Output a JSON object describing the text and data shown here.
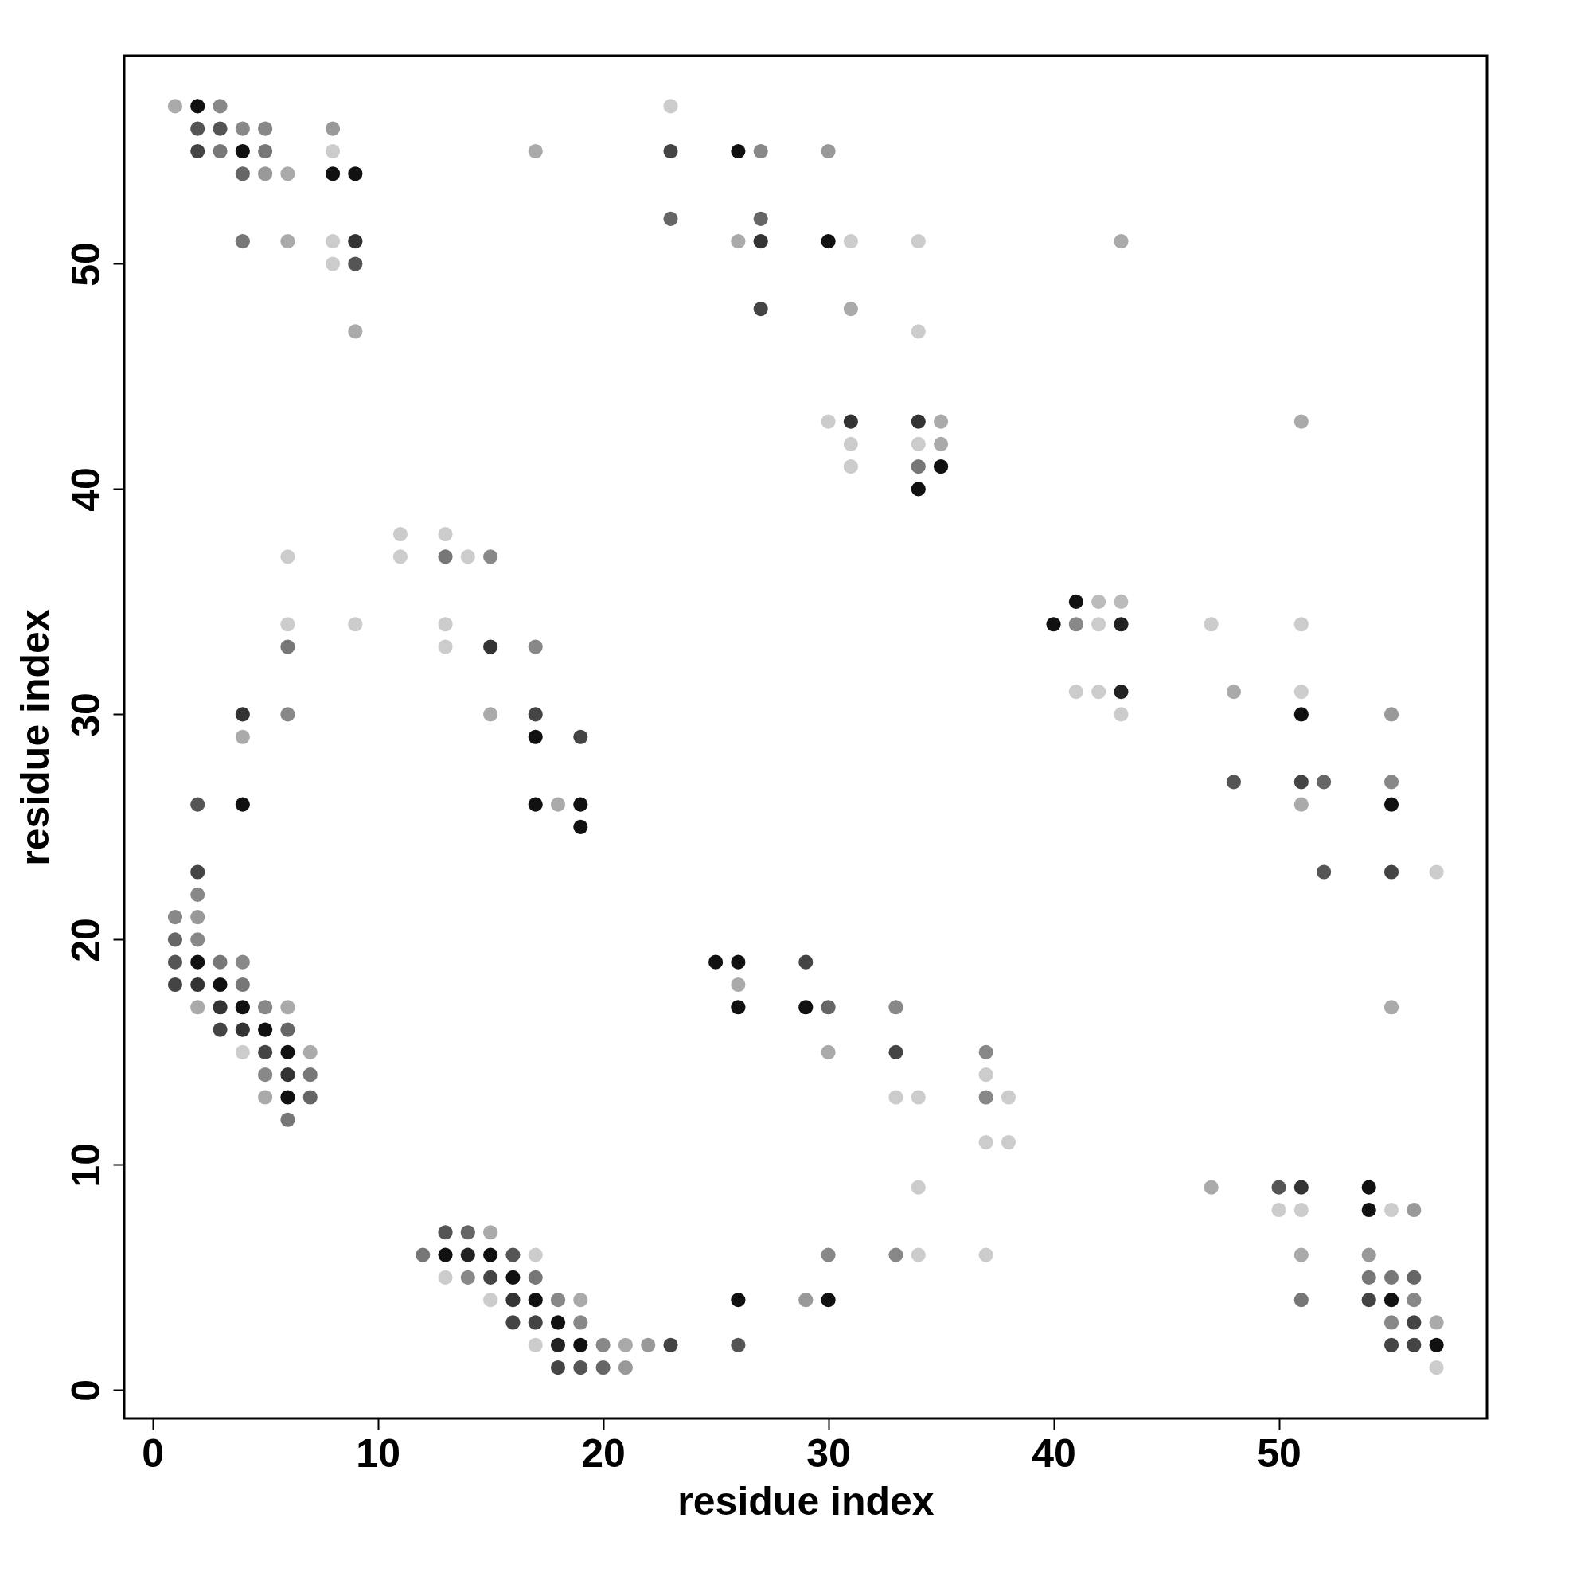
{
  "chart_data": {
    "type": "scatter",
    "xlabel": "residue index",
    "ylabel": "residue index",
    "xlim": [
      -1.26,
      59.24
    ],
    "ylim": [
      -1.26,
      59.24
    ],
    "xticks": [
      0,
      10,
      20,
      30,
      40,
      50
    ],
    "yticks": [
      0,
      10,
      20,
      30,
      40,
      50
    ],
    "marker": "circle",
    "series": [
      {
        "x": [
          1,
          2,
          3,
          2,
          3,
          4,
          5,
          8,
          2,
          3,
          4,
          5,
          8,
          17,
          4,
          5,
          6,
          8,
          9,
          4,
          6,
          8,
          9,
          8,
          9,
          9,
          23,
          23,
          26,
          27,
          30,
          23,
          27,
          26,
          27,
          30,
          31,
          34,
          43,
          27,
          31,
          34,
          30,
          31,
          34,
          35,
          31,
          34,
          35,
          31,
          34,
          35,
          34,
          11,
          13,
          6,
          11,
          13,
          14,
          15,
          6,
          9,
          13,
          6,
          13,
          15,
          17,
          4,
          6,
          15,
          17,
          4,
          17,
          19,
          2,
          4,
          17,
          18,
          19,
          19,
          41,
          42,
          43,
          40,
          41,
          42,
          43,
          47,
          51,
          41,
          42,
          43,
          48,
          51,
          43,
          51,
          55,
          48,
          51,
          52,
          55,
          51,
          55,
          52,
          55,
          57,
          55,
          51,
          2,
          2,
          1,
          2,
          1,
          2,
          1,
          2,
          3,
          4,
          1,
          2,
          3,
          4,
          2,
          3,
          4,
          5,
          6,
          3,
          4,
          5,
          6,
          4,
          5,
          6,
          7,
          5,
          6,
          7,
          5,
          6,
          7,
          6,
          25,
          26,
          29,
          26,
          26,
          29,
          30,
          33,
          30,
          33,
          37,
          37,
          33,
          34,
          37,
          38,
          37,
          38,
          34,
          47,
          50,
          51,
          54,
          50,
          51,
          54,
          55,
          56,
          13,
          14,
          15,
          12,
          13,
          14,
          15,
          16,
          17,
          30,
          33,
          34,
          37,
          51,
          54,
          13,
          14,
          15,
          16,
          17,
          54,
          55,
          56,
          15,
          16,
          17,
          18,
          19,
          26,
          29,
          30,
          51,
          54,
          55,
          56,
          16,
          17,
          18,
          19,
          55,
          56,
          57,
          17,
          18,
          19,
          20,
          21,
          22,
          23,
          26,
          55,
          56,
          57,
          18,
          19,
          20,
          21,
          57
        ],
        "values": [
          57,
          57,
          57,
          56,
          56,
          56,
          56,
          56,
          55,
          55,
          55,
          55,
          55,
          55,
          54,
          54,
          54,
          54,
          54,
          51,
          51,
          51,
          51,
          50,
          50,
          47,
          57,
          55,
          55,
          55,
          55,
          52,
          52,
          51,
          51,
          51,
          51,
          51,
          51,
          48,
          48,
          47,
          43,
          43,
          43,
          43,
          42,
          42,
          42,
          41,
          41,
          41,
          40,
          38,
          38,
          37,
          37,
          37,
          37,
          37,
          34,
          34,
          34,
          33,
          33,
          33,
          33,
          30,
          30,
          30,
          30,
          29,
          29,
          29,
          26,
          26,
          26,
          26,
          26,
          25,
          35,
          35,
          35,
          34,
          34,
          34,
          34,
          34,
          34,
          31,
          31,
          31,
          31,
          31,
          30,
          30,
          30,
          27,
          27,
          27,
          27,
          26,
          26,
          23,
          23,
          23,
          17,
          43,
          23,
          22,
          21,
          21,
          20,
          20,
          19,
          19,
          19,
          19,
          18,
          18,
          18,
          18,
          17,
          17,
          17,
          17,
          17,
          16,
          16,
          16,
          16,
          15,
          15,
          15,
          15,
          14,
          14,
          14,
          13,
          13,
          13,
          12,
          19,
          19,
          19,
          18,
          17,
          17,
          17,
          17,
          15,
          15,
          15,
          14,
          13,
          13,
          13,
          13,
          11,
          11,
          9,
          9,
          9,
          9,
          9,
          8,
          8,
          8,
          8,
          8,
          7,
          7,
          7,
          6,
          6,
          6,
          6,
          6,
          6,
          6,
          6,
          6,
          6,
          6,
          6,
          5,
          5,
          5,
          5,
          5,
          5,
          5,
          5,
          4,
          4,
          4,
          4,
          4,
          4,
          4,
          4,
          4,
          4,
          4,
          4,
          3,
          3,
          3,
          3,
          3,
          3,
          3,
          2,
          2,
          2,
          2,
          2,
          2,
          2,
          2,
          2,
          2,
          2,
          1,
          1,
          1,
          1,
          1
        ],
        "colors": [
          "#aaaaaa",
          "#111111",
          "#888888",
          "#555555",
          "#555555",
          "#888888",
          "#888888",
          "#999999",
          "#444444",
          "#777777",
          "#111111",
          "#777777",
          "#cccccc",
          "#aaaaaa",
          "#666666",
          "#999999",
          "#aaaaaa",
          "#111111",
          "#111111",
          "#777777",
          "#aaaaaa",
          "#cccccc",
          "#333333",
          "#cccccc",
          "#555555",
          "#aaaaaa",
          "#cccccc",
          "#444444",
          "#111111",
          "#888888",
          "#999999",
          "#666666",
          "#666666",
          "#aaaaaa",
          "#333333",
          "#111111",
          "#cccccc",
          "#cccccc",
          "#aaaaaa",
          "#444444",
          "#aaaaaa",
          "#cccccc",
          "#cccccc",
          "#333333",
          "#333333",
          "#aaaaaa",
          "#cccccc",
          "#cccccc",
          "#aaaaaa",
          "#cccccc",
          "#777777",
          "#111111",
          "#111111",
          "#cccccc",
          "#cccccc",
          "#cccccc",
          "#cccccc",
          "#777777",
          "#cccccc",
          "#888888",
          "#cccccc",
          "#cccccc",
          "#cccccc",
          "#777777",
          "#cccccc",
          "#333333",
          "#888888",
          "#333333",
          "#888888",
          "#aaaaaa",
          "#444444",
          "#aaaaaa",
          "#111111",
          "#444444",
          "#555555",
          "#111111",
          "#111111",
          "#aaaaaa",
          "#111111",
          "#111111",
          "#111111",
          "#bbbbbb",
          "#bbbbbb",
          "#111111",
          "#888888",
          "#cccccc",
          "#222222",
          "#cccccc",
          "#cccccc",
          "#cccccc",
          "#cccccc",
          "#222222",
          "#aaaaaa",
          "#cccccc",
          "#cccccc",
          "#111111",
          "#999999",
          "#555555",
          "#444444",
          "#666666",
          "#888888",
          "#aaaaaa",
          "#111111",
          "#555555",
          "#444444",
          "#cccccc",
          "#aaaaaa",
          "#aaaaaa",
          "#444444",
          "#888888",
          "#888888",
          "#999999",
          "#666666",
          "#888888",
          "#555555",
          "#111111",
          "#777777",
          "#888888",
          "#444444",
          "#333333",
          "#111111",
          "#777777",
          "#aaaaaa",
          "#333333",
          "#111111",
          "#888888",
          "#aaaaaa",
          "#444444",
          "#333333",
          "#111111",
          "#666666",
          "#cccccc",
          "#444444",
          "#111111",
          "#aaaaaa",
          "#888888",
          "#333333",
          "#777777",
          "#aaaaaa",
          "#111111",
          "#666666",
          "#777777",
          "#111111",
          "#111111",
          "#444444",
          "#aaaaaa",
          "#111111",
          "#111111",
          "#666666",
          "#888888",
          "#aaaaaa",
          "#444444",
          "#888888",
          "#cccccc",
          "#cccccc",
          "#cccccc",
          "#888888",
          "#cccccc",
          "#cccccc",
          "#cccccc",
          "#cccccc",
          "#aaaaaa",
          "#555555",
          "#333333",
          "#111111",
          "#cccccc",
          "#cccccc",
          "#111111",
          "#cccccc",
          "#999999",
          "#555555",
          "#666666",
          "#aaaaaa",
          "#777777",
          "#111111",
          "#222222",
          "#111111",
          "#555555",
          "#cccccc",
          "#888888",
          "#888888",
          "#cccccc",
          "#cccccc",
          "#aaaaaa",
          "#999999",
          "#cccccc",
          "#888888",
          "#444444",
          "#111111",
          "#777777",
          "#777777",
          "#777777",
          "#666666",
          "#cccccc",
          "#333333",
          "#111111",
          "#888888",
          "#aaaaaa",
          "#111111",
          "#999999",
          "#111111",
          "#777777",
          "#444444",
          "#111111",
          "#888888",
          "#444444",
          "#444444",
          "#111111",
          "#888888",
          "#888888",
          "#444444",
          "#aaaaaa",
          "#cccccc",
          "#222222",
          "#111111",
          "#888888",
          "#aaaaaa",
          "#999999",
          "#444444",
          "#555555",
          "#444444",
          "#444444",
          "#111111",
          "#444444",
          "#555555",
          "#666666",
          "#999999",
          "#cccccc"
        ]
      }
    ]
  }
}
